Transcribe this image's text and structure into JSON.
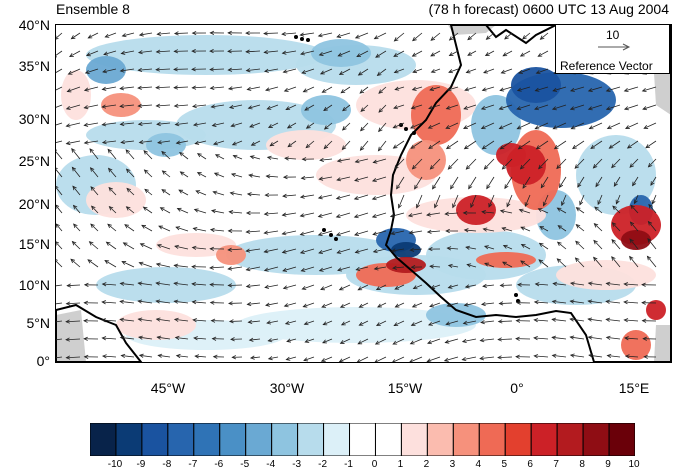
{
  "header": {
    "left": "Ensemble 8",
    "right": "(78 h forecast) 0600 UTC 13 Aug 2004"
  },
  "reference_vector": {
    "value": "10",
    "label": "Reference Vector"
  },
  "axes": {
    "lat_labels": [
      "40°N",
      "35°N",
      "30°N",
      "25°N",
      "20°N",
      "15°N",
      "10°N",
      "5°N",
      "0°"
    ],
    "lon_labels": [
      "45°W",
      "30°W",
      "15°W",
      "0°",
      "15°E"
    ],
    "lat_range": [
      0,
      40
    ],
    "lon_range": [
      -57,
      19
    ]
  },
  "colorbar": {
    "labels": [
      "-10",
      "-9",
      "-8",
      "-7",
      "-6",
      "-5",
      "-4",
      "-3",
      "-2",
      "-1",
      "0",
      "1",
      "2",
      "3",
      "4",
      "5",
      "6",
      "7",
      "8",
      "9",
      "10"
    ],
    "colors": [
      "#08234a",
      "#0b3b75",
      "#1a53a0",
      "#2765ae",
      "#2f73b6",
      "#4a90c6",
      "#6aa9d3",
      "#8ec4e0",
      "#b7dcec",
      "#dcf0f8",
      "#ffffff",
      "#ffffff",
      "#fde0dd",
      "#fbbcaf",
      "#f6917c",
      "#ef6a55",
      "#e3402e",
      "#cc2127",
      "#b31b1f",
      "#8f0d14",
      "#6a0009"
    ]
  },
  "map_colors": {
    "land_mask": "#cfcfcf",
    "coastline": "#000000",
    "vector": "#222222"
  }
}
